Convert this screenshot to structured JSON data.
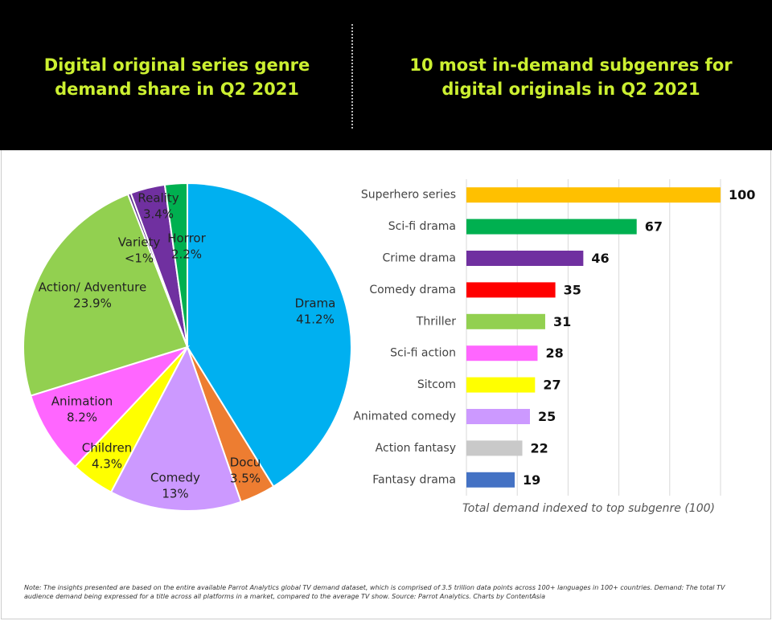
{
  "chart_data": [
    {
      "type": "pie",
      "title": "Digital original series genre demand share in Q2 2021",
      "categories": [
        "Drama",
        "Docu",
        "Comedy",
        "Children",
        "Animation",
        "Action/ Adventure",
        "Variety",
        "Reality",
        "Horror"
      ],
      "values": [
        41.2,
        3.5,
        13,
        4.3,
        8.2,
        23.9,
        0.3,
        3.4,
        2.2
      ],
      "value_labels": [
        "41.2%",
        "3.5%",
        "13%",
        "4.3%",
        "8.2%",
        "23.9%",
        "<1%",
        "3.4%",
        "2.2%"
      ],
      "colors": [
        "#00b0f0",
        "#ed7d31",
        "#cc99ff",
        "#ffff00",
        "#ff66ff",
        "#92d050",
        "#5b2c8a",
        "#7030a0",
        "#00b050"
      ]
    },
    {
      "type": "hbar",
      "title": "10 most in-demand subgenres for digital originals in Q2 2021",
      "categories": [
        "Superhero series",
        "Sci-fi drama",
        "Crime drama",
        "Comedy drama",
        "Thriller",
        "Sci-fi action",
        "Sitcom",
        "Animated comedy",
        "Action fantasy",
        "Fantasy drama"
      ],
      "values": [
        100,
        67,
        46,
        35,
        31,
        28,
        27,
        25,
        22,
        19
      ],
      "colors": [
        "#ffc000",
        "#00b050",
        "#7030a0",
        "#ff0000",
        "#92d050",
        "#ff66ff",
        "#ffff00",
        "#cc99ff",
        "#c9c9c9",
        "#4472c4"
      ],
      "xlabel": "Total demand indexed to top subgenre (100)",
      "xlim": [
        0,
        100
      ],
      "xticks": [
        0,
        20,
        40,
        60,
        80,
        100
      ],
      "grid": true
    }
  ],
  "note": "Note: The insights presented are based on the entire available Parrot Analytics global TV demand dataset, which is comprised of 3.5 trillion data points across 100+ languages in 100+ countries. Demand: The total TV audience demand being expressed for a title across all platforms in a market, compared to the average TV show. Source: Parrot Analytics. Charts by ContentAsia"
}
